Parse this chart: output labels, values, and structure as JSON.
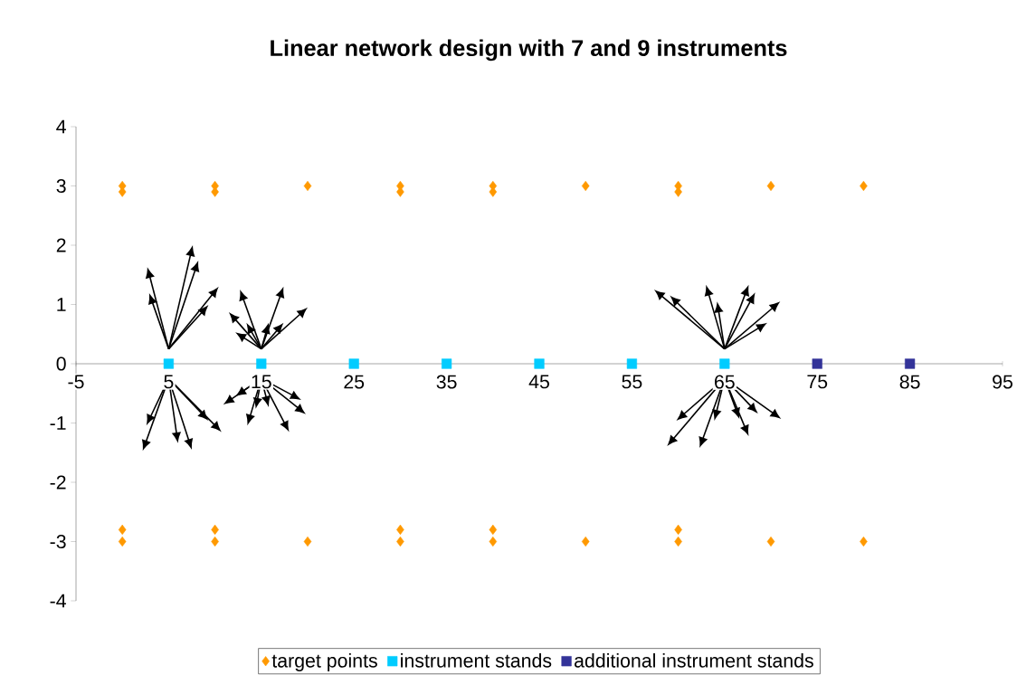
{
  "chart_data": {
    "type": "scatter",
    "title": "Linear network design with 7 and 9 instruments",
    "xlim": [
      -5,
      95
    ],
    "xticks": [
      -5,
      5,
      15,
      25,
      35,
      45,
      55,
      65,
      75,
      85,
      95
    ],
    "ylim": [
      -4,
      4
    ],
    "yticks": [
      -4,
      -3,
      -2,
      -1,
      0,
      1,
      2,
      3,
      4
    ],
    "legend": "bottom",
    "series": [
      {
        "name": "target points",
        "color": "#ff9900",
        "marker": "diamond",
        "x": [
          0,
          0,
          10,
          10,
          20,
          30,
          30,
          40,
          40,
          50,
          60,
          60,
          70,
          80,
          0,
          0,
          10,
          10,
          20,
          30,
          30,
          40,
          40,
          50,
          60,
          60,
          70,
          80
        ],
        "values": [
          3,
          2.9,
          3,
          2.9,
          3,
          3,
          2.9,
          3,
          2.9,
          3,
          3,
          2.9,
          3,
          3,
          -2.8,
          -3,
          -2.8,
          -3,
          -3,
          -2.8,
          -3,
          -2.8,
          -3,
          -3,
          -2.8,
          -3,
          -3,
          -3
        ]
      },
      {
        "name": "instrument stands",
        "color": "#00ccff",
        "marker": "square",
        "x": [
          5,
          15,
          25,
          35,
          45,
          55,
          65
        ],
        "values": [
          0,
          0,
          0,
          0,
          0,
          0,
          0
        ]
      },
      {
        "name": "additional instrument stands",
        "color": "#333399",
        "marker": "square",
        "x": [
          75,
          85
        ],
        "values": [
          0,
          0
        ]
      }
    ]
  }
}
